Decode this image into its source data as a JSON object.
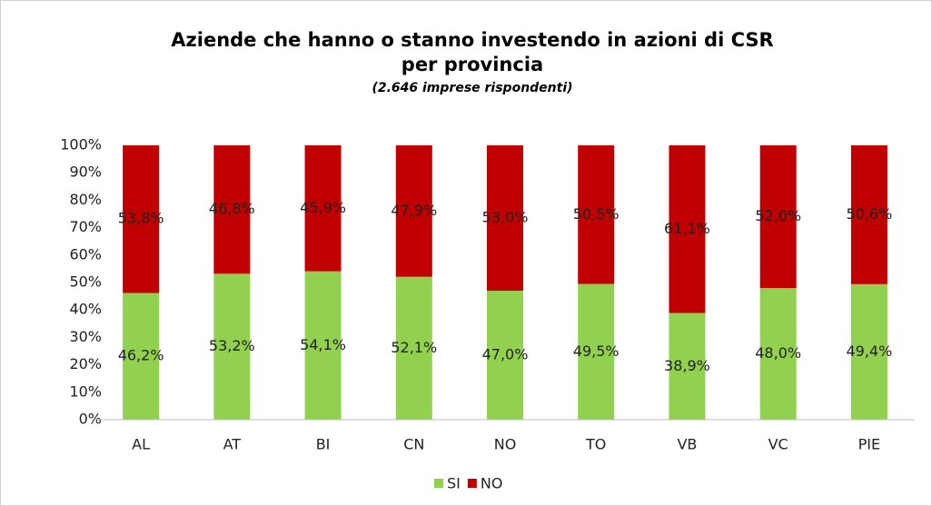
{
  "chart_data": {
    "type": "stacked_bar",
    "title": [
      "Aziende che hanno o stanno investendo in azioni di CSR",
      "per provincia"
    ],
    "subtitle": "(2.646 imprese rispondenti)",
    "categories": [
      "AL",
      "AT",
      "BI",
      "CN",
      "NO",
      "TO",
      "VB",
      "VC",
      "PIE"
    ],
    "series": [
      {
        "name": "SI",
        "color": "#92d050",
        "values": [
          46.2,
          53.2,
          54.1,
          52.1,
          47.0,
          49.5,
          38.9,
          48.0,
          49.4
        ],
        "value_labels": [
          "46,2%",
          "53,2%",
          "54,1%",
          "52,1%",
          "47,0%",
          "49,5%",
          "38,9%",
          "48,0%",
          "49,4%"
        ]
      },
      {
        "name": "NO",
        "color": "#c00000",
        "values": [
          53.8,
          46.8,
          45.9,
          47.9,
          53.0,
          50.5,
          61.1,
          52.0,
          50.6
        ],
        "value_labels": [
          "53,8%",
          "46,8%",
          "45,9%",
          "47,9%",
          "53,0%",
          "50,5%",
          "61,1%",
          "52,0%",
          "50,6%"
        ]
      }
    ],
    "ylim": [
      0,
      100
    ],
    "yticks": [
      {
        "value": 0,
        "label": "0%"
      },
      {
        "value": 10,
        "label": "10%"
      },
      {
        "value": 20,
        "label": "20%"
      },
      {
        "value": 30,
        "label": "30%"
      },
      {
        "value": 40,
        "label": "40%"
      },
      {
        "value": 50,
        "label": "50%"
      },
      {
        "value": 60,
        "label": "60%"
      },
      {
        "value": 70,
        "label": "70%"
      },
      {
        "value": 80,
        "label": "80%"
      },
      {
        "value": 90,
        "label": "90%"
      },
      {
        "value": 100,
        "label": "100%"
      }
    ],
    "legend": "bottom"
  }
}
